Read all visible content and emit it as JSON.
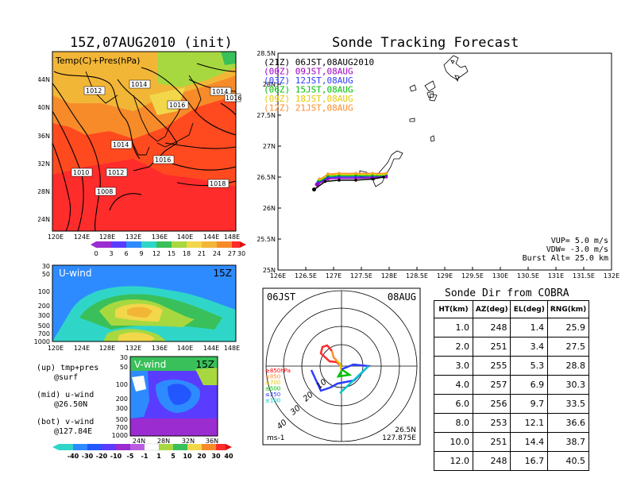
{
  "left": {
    "title": "15Z,07AUG2010 (init)",
    "map_label": "Temp(C)+Pres(hPa)",
    "lat_labels": [
      "44N",
      "40N",
      "36N",
      "32N",
      "28N",
      "24N"
    ],
    "lon_labels": [
      "120E",
      "124E",
      "128E",
      "132E",
      "136E",
      "140E",
      "144E",
      "148E"
    ],
    "isobars": [
      "1014",
      "1012",
      "1014",
      "1016",
      "1014",
      "1016",
      "1014",
      "1012",
      "1010",
      "1016",
      "1008",
      "1018"
    ],
    "temp_colorbar": [
      "0",
      "3",
      "6",
      "9",
      "12",
      "15",
      "18",
      "21",
      "24",
      "27",
      "30"
    ],
    "u_label": "U-wind",
    "u_time": "15Z",
    "v_label": "V-wind",
    "v_time": "15Z",
    "pres_labels": [
      "30",
      "50",
      "100",
      "200",
      "300",
      "500",
      "700",
      "1000"
    ],
    "v_lat_labels": [
      "24N",
      "28N",
      "32N",
      "36N"
    ],
    "wind_colorbar": [
      "-40",
      "-30",
      "-20",
      "-10",
      "-5",
      "-1",
      "1",
      "5",
      "10",
      "20",
      "30",
      "40"
    ],
    "notes": [
      "(up) tmp+pres",
      "@surf",
      "(mid) u-wind",
      "@26.50N",
      "(bot) v-wind",
      "@127.84E"
    ]
  },
  "track": {
    "title": "Sonde Tracking Forecast",
    "legend": [
      {
        "text": "(21Z) 06JST,08AUG2010",
        "color": "#000000"
      },
      {
        "text": "(00Z) 09JST,08AUG",
        "color": "#a000c8"
      },
      {
        "text": "(03Z) 12JST,08AUG",
        "color": "#2e3cff"
      },
      {
        "text": "(06Z) 15JST,08AUG",
        "color": "#00c000"
      },
      {
        "text": "(09Z) 18JST,08AUG",
        "color": "#e6c800"
      },
      {
        "text": "(12Z) 21JST,08AUG",
        "color": "#ff8c28"
      }
    ],
    "lat_labels": [
      "28.5N",
      "28N",
      "27.5N",
      "27N",
      "26.5N",
      "26N",
      "25.5N",
      "25N"
    ],
    "lon_labels": [
      "126E",
      "126.5E",
      "127E",
      "127.5E",
      "128E",
      "128.5E",
      "129E",
      "129.5E",
      "130E",
      "130.5E",
      "131E",
      "131.5E",
      "132E"
    ],
    "params": [
      "VUP= 5.0 m/s",
      "VDW= -3.0 m/s",
      "Burst Alt= 25.0 km"
    ]
  },
  "polar": {
    "time_label": "06JST",
    "date_label": "08AUG",
    "legend": [
      {
        "text": "≥850hPa",
        "color": "#ff0000"
      },
      {
        "text": "≤850",
        "color": "#ff8c28"
      },
      {
        "text": "≤700",
        "color": "#e6c800"
      },
      {
        "text": "≤500",
        "color": "#00c000"
      },
      {
        "text": "≤250",
        "color": "#2e3cff"
      },
      {
        "text": "≤100",
        "color": "#00c8c8"
      }
    ],
    "ring_labels": [
      "10",
      "20",
      "30",
      "40"
    ],
    "unit": "ms-1",
    "pos_lat": "26.5N",
    "pos_lon": "127.875E"
  },
  "sonde_table": {
    "title": "Sonde Dir from COBRA",
    "columns": [
      "HT(km)",
      "AZ(deg)",
      "EL(deg)",
      "RNG(km)"
    ],
    "rows": [
      [
        "1.0",
        "248",
        "1.4",
        "25.9"
      ],
      [
        "2.0",
        "251",
        "3.4",
        "27.5"
      ],
      [
        "3.0",
        "255",
        "5.3",
        "28.8"
      ],
      [
        "4.0",
        "257",
        "6.9",
        "30.3"
      ],
      [
        "6.0",
        "256",
        "9.7",
        "33.5"
      ],
      [
        "8.0",
        "253",
        "12.1",
        "36.6"
      ],
      [
        "10.0",
        "251",
        "14.4",
        "38.7"
      ],
      [
        "12.0",
        "248",
        "16.7",
        "40.5"
      ]
    ]
  },
  "chart_data": [
    {
      "type": "table",
      "title": "Sonde Dir from COBRA",
      "columns": [
        "HT(km)",
        "AZ(deg)",
        "EL(deg)",
        "RNG(km)"
      ],
      "rows": [
        [
          1.0,
          248,
          1.4,
          25.9
        ],
        [
          2.0,
          251,
          3.4,
          27.5
        ],
        [
          3.0,
          255,
          5.3,
          28.8
        ],
        [
          4.0,
          257,
          6.9,
          30.3
        ],
        [
          6.0,
          256,
          9.7,
          33.5
        ],
        [
          8.0,
          253,
          12.1,
          36.6
        ],
        [
          10.0,
          251,
          14.4,
          38.7
        ],
        [
          12.0,
          248,
          16.7,
          40.5
        ]
      ]
    },
    {
      "type": "line",
      "title": "Sonde Tracking Forecast",
      "xlim": [
        126,
        132
      ],
      "ylim": [
        25,
        28.5
      ],
      "series": [
        {
          "name": "(21Z) 06JST,08AUG2010",
          "x": [
            126.65,
            126.85,
            127.1,
            127.4,
            127.7,
            127.9
          ],
          "y": [
            26.3,
            26.43,
            26.45,
            26.45,
            26.47,
            26.5
          ]
        },
        {
          "name": "(00Z) 09JST,08AUG",
          "x": [
            126.7,
            126.9,
            127.1,
            127.4,
            127.7,
            127.95
          ],
          "y": [
            26.38,
            26.47,
            26.48,
            26.48,
            26.49,
            26.5
          ]
        },
        {
          "name": "(03Z) 12JST,08AUG",
          "x": [
            126.72,
            126.9,
            127.1,
            127.4,
            127.7,
            127.95
          ],
          "y": [
            26.4,
            26.49,
            26.5,
            26.5,
            26.5,
            26.51
          ]
        },
        {
          "name": "(06Z) 15JST,08AUG",
          "x": [
            126.73,
            126.9,
            127.1,
            127.4,
            127.7,
            127.95
          ],
          "y": [
            26.42,
            26.51,
            26.52,
            26.52,
            26.52,
            26.52
          ]
        },
        {
          "name": "(09Z) 18JST,08AUG",
          "x": [
            126.74,
            126.9,
            127.1,
            127.4,
            127.7,
            127.95
          ],
          "y": [
            26.44,
            26.53,
            26.54,
            26.54,
            26.54,
            26.54
          ]
        },
        {
          "name": "(12Z) 21JST,08AUG",
          "x": [
            126.75,
            126.9,
            127.1,
            127.4,
            127.7,
            127.95
          ],
          "y": [
            26.46,
            26.55,
            26.56,
            26.56,
            26.56,
            26.56
          ]
        }
      ]
    }
  ],
  "colors": {
    "warm": "#ff4a1f",
    "mid": "#ffa030",
    "green": "#39c05a",
    "purple": "#9b2cd0",
    "cyan": "#2fd6c8",
    "blue": "#2257ff"
  }
}
